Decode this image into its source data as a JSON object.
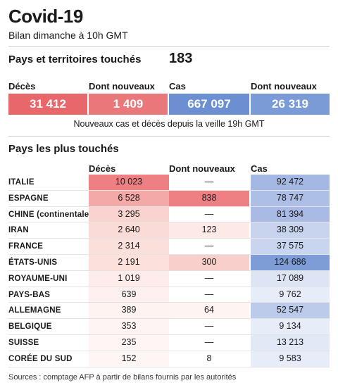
{
  "title": "Covid-19",
  "subtitle": "Bilan dimanche à 10h GMT",
  "countries_affected": {
    "label": "Pays et territoires touchés",
    "value": "183"
  },
  "summary": {
    "headers": [
      "Décès",
      "Dont nouveaux",
      "Cas",
      "Dont nouveaux"
    ],
    "values": [
      "31 412",
      "1 409",
      "667 097",
      "26 319"
    ],
    "colors": [
      "#e8676b",
      "#ea787b",
      "#6b8fd0",
      "#7b9bd6"
    ]
  },
  "note": "Nouveaux cas et décès depuis la veille 19h GMT",
  "table": {
    "title": "Pays les plus touchés",
    "headers": [
      "Décès",
      "Dont nouveaux",
      "Cas"
    ],
    "rows": [
      {
        "country": "ITALIE",
        "deaths": "10 023",
        "new_deaths": "—",
        "cases": "92 472",
        "deaths_color": "#ee7f82",
        "new_color": "#ffffff",
        "cases_color": "#a5b8e3"
      },
      {
        "country": "ESPAGNE",
        "deaths": "6 528",
        "new_deaths": "838",
        "cases": "78 747",
        "deaths_color": "#f3a9a7",
        "new_color": "#ee7f82",
        "cases_color": "#aebfe6"
      },
      {
        "country": "CHINE (continentale)",
        "deaths": "3 295",
        "new_deaths": "—",
        "cases": "81 394",
        "deaths_color": "#f9d3cf",
        "new_color": "#ffffff",
        "cases_color": "#a9bbe4"
      },
      {
        "country": "IRAN",
        "deaths": "2 640",
        "new_deaths": "123",
        "cases": "38 309",
        "deaths_color": "#fadbd7",
        "new_color": "#fde9e6",
        "cases_color": "#c8d4ee"
      },
      {
        "country": "FRANCE",
        "deaths": "2 314",
        "new_deaths": "—",
        "cases": "37 575",
        "deaths_color": "#fbdfdb",
        "new_color": "#ffffff",
        "cases_color": "#c9d5ee"
      },
      {
        "country": "ÉTATS-UNIS",
        "deaths": "2 191",
        "new_deaths": "300",
        "cases": "124 686",
        "deaths_color": "#fbe0dc",
        "new_color": "#f8cfcb",
        "cases_color": "#7e9cd6"
      },
      {
        "country": "ROYAUME-UNI",
        "deaths": "1 019",
        "new_deaths": "—",
        "cases": "17 089",
        "deaths_color": "#fdece9",
        "new_color": "#ffffff",
        "cases_color": "#dde5f5"
      },
      {
        "country": "PAYS-BAS",
        "deaths": "639",
        "new_deaths": "—",
        "cases": "9 762",
        "deaths_color": "#fdf0ee",
        "new_color": "#ffffff",
        "cases_color": "#e6ecf8"
      },
      {
        "country": "ALLEMAGNE",
        "deaths": "389",
        "new_deaths": "64",
        "cases": "52 547",
        "deaths_color": "#fef3f1",
        "new_color": "#fef4f2",
        "cases_color": "#bccbea"
      },
      {
        "country": "BELGIQUE",
        "deaths": "353",
        "new_deaths": "—",
        "cases": "9 134",
        "deaths_color": "#fef4f2",
        "new_color": "#ffffff",
        "cases_color": "#e7edf8"
      },
      {
        "country": "SUISSE",
        "deaths": "235",
        "new_deaths": "—",
        "cases": "13 213",
        "deaths_color": "#fef5f4",
        "new_color": "#ffffff",
        "cases_color": "#e1e8f6"
      },
      {
        "country": "CORÉE DU SUD",
        "deaths": "152",
        "new_deaths": "8",
        "cases": "9 583",
        "deaths_color": "#fef6f5",
        "new_color": "#ffffff",
        "cases_color": "#e6ecf8"
      }
    ]
  },
  "sources": "Sources : comptage AFP à partir de bilans fournis par les autorités"
}
